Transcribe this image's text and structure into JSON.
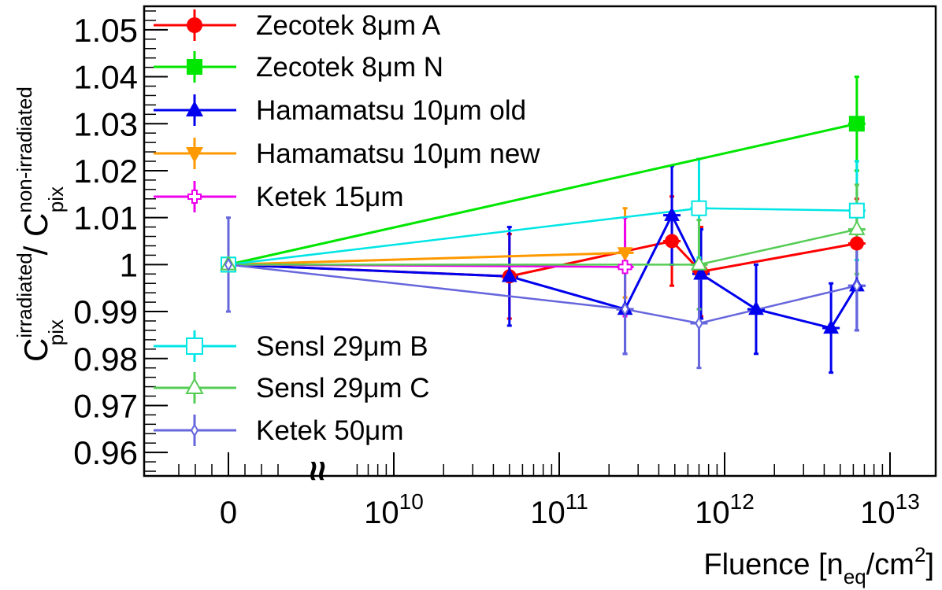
{
  "chart_data": {
    "type": "scatter",
    "x_scale": "log10 with a separate tick for zero; axis break marker between 0 and the log region",
    "y_range": [
      0.955,
      1.055
    ],
    "x_range_log10": [
      9.0,
      13.3
    ],
    "xlabel": {
      "main": "Fluence [n",
      "sub": "eq",
      "mid": "/cm",
      "sup": "2",
      "end": "]"
    },
    "ylabel": {
      "c1": "C",
      "sup1": "irradiated",
      "sub1": "pix",
      "slash": " / ",
      "c2": "C",
      "sup2": "non-irradiated",
      "sub2": "pix"
    },
    "x_ticks": [
      {
        "label_base": "0",
        "label_exp": "",
        "fluence": 0
      },
      {
        "label_base": "10",
        "label_exp": "10",
        "fluence": 10000000000.0
      },
      {
        "label_base": "10",
        "label_exp": "11",
        "fluence": 100000000000.0
      },
      {
        "label_base": "10",
        "label_exp": "12",
        "fluence": 1000000000000.0
      },
      {
        "label_base": "10",
        "label_exp": "13",
        "fluence": 10000000000000.0
      }
    ],
    "y_ticks": [
      "0.96",
      "0.97",
      "0.98",
      "0.99",
      "1",
      "1.01",
      "1.02",
      "1.03",
      "1.04",
      "1.05"
    ],
    "axis_break_glyph": "≈",
    "grid": false,
    "legend_placement": "top-left inside plot, two groups",
    "series": [
      {
        "name": "Zecotek 8μm A",
        "color": "#ff0000",
        "marker": "circle-filled",
        "points": [
          {
            "x": 0,
            "y": 1.0,
            "err": 0.0
          },
          {
            "x": 50000000000.0,
            "y": 0.9975,
            "err": 0.009
          },
          {
            "x": 480000000000.0,
            "y": 1.005,
            "err": 0.0095
          },
          {
            "x": 720000000000.0,
            "y": 0.9985,
            "err": 0.0095
          },
          {
            "x": 6300000000000.0,
            "y": 1.0045,
            "err": 0.0095
          }
        ]
      },
      {
        "name": "Zecotek 8μm N",
        "color": "#00e600",
        "marker": "square-filled",
        "points": [
          {
            "x": 0,
            "y": 1.0,
            "err": 0.0
          },
          {
            "x": 6300000000000.0,
            "y": 1.03,
            "err": 0.01
          }
        ]
      },
      {
        "name": "Hamamatsu 10μm old",
        "color": "#0000ee",
        "marker": "triangle-up-filled",
        "points": [
          {
            "x": 0,
            "y": 1.0,
            "err": 0.0
          },
          {
            "x": 50000000000.0,
            "y": 0.9975,
            "err": 0.0105
          },
          {
            "x": 250000000000.0,
            "y": 0.9905,
            "err": 0.0095
          },
          {
            "x": 480000000000.0,
            "y": 1.0105,
            "err": 0.0105
          },
          {
            "x": 720000000000.0,
            "y": 0.998,
            "err": 0.0095
          },
          {
            "x": 1550000000000.0,
            "y": 0.9905,
            "err": 0.0095
          },
          {
            "x": 4400000000000.0,
            "y": 0.9865,
            "err": 0.0095
          },
          {
            "x": 6300000000000.0,
            "y": 0.9955,
            "err": 0.0095
          }
        ]
      },
      {
        "name": "Hamamatsu 10μm new",
        "color": "#ff9900",
        "marker": "triangle-down-filled",
        "points": [
          {
            "x": 0,
            "y": 1.0,
            "err": 0.0
          },
          {
            "x": 250000000000.0,
            "y": 1.0025,
            "err": 0.0095
          }
        ]
      },
      {
        "name": "Ketek 15μm",
        "color": "#ee00ee",
        "marker": "cross-open",
        "points": [
          {
            "x": 0,
            "y": 1.0,
            "err": 0.0
          },
          {
            "x": 250000000000.0,
            "y": 0.9995,
            "err": 0.0105
          }
        ]
      },
      {
        "name": "Sensl 29μm B",
        "color": "#00e5e5",
        "marker": "square-open",
        "points": [
          {
            "x": 0,
            "y": 1.0,
            "err": 0.0
          },
          {
            "x": 700000000000.0,
            "y": 1.012,
            "err": 0.0105
          },
          {
            "x": 6300000000000.0,
            "y": 1.0115,
            "err": 0.0105
          }
        ]
      },
      {
        "name": "Sensl 29μm C",
        "color": "#55cc55",
        "marker": "triangle-up-open",
        "points": [
          {
            "x": 0,
            "y": 1.0,
            "err": 0.0
          },
          {
            "x": 700000000000.0,
            "y": 1.0,
            "err": 0.0095
          },
          {
            "x": 6300000000000.0,
            "y": 1.0075,
            "err": 0.0095
          }
        ]
      },
      {
        "name": "Ketek 50μm",
        "color": "#6666dd",
        "marker": "diamond-open",
        "points": [
          {
            "x": 0,
            "y": 1.0,
            "err": 0.01
          },
          {
            "x": 250000000000.0,
            "y": 0.9905,
            "err": 0.0095
          },
          {
            "x": 700000000000.0,
            "y": 0.9875,
            "err": 0.0095
          },
          {
            "x": 6300000000000.0,
            "y": 0.9955,
            "err": 0.0095
          }
        ]
      }
    ]
  }
}
